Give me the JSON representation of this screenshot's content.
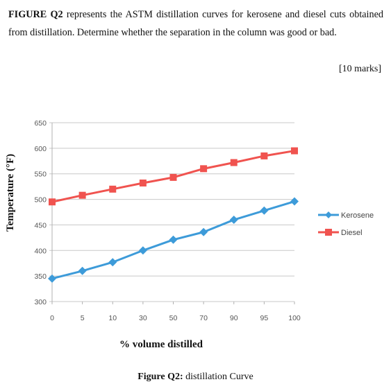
{
  "question": {
    "label": "FIGURE Q2",
    "text": " represents the ASTM distillation curves for kerosene and diesel cuts obtained from distillation. Determine whether the separation in the column was good or bad.",
    "marks": "[10 marks]"
  },
  "caption": {
    "label": "Figure Q2:",
    "text": "  distillation Curve"
  },
  "chart_data": {
    "type": "line",
    "categories": [
      "0",
      "5",
      "10",
      "30",
      "50",
      "70",
      "90",
      "95",
      "100"
    ],
    "ylabel": "Temperature (°F)",
    "xlabel": "% volume distilled",
    "ylim": [
      300,
      650
    ],
    "yticks": [
      300,
      350,
      400,
      450,
      500,
      550,
      600,
      650
    ],
    "grid": "horizontal",
    "legend": "right",
    "series": [
      {
        "name": "Kerosene",
        "color": "#3d9bd9",
        "marker": "diamond",
        "values": [
          345,
          360,
          377,
          400,
          421,
          436,
          460,
          478,
          496
        ]
      },
      {
        "name": "Diesel",
        "color": "#f0534f",
        "marker": "square",
        "values": [
          495,
          508,
          520,
          532,
          543,
          560,
          572,
          585,
          595
        ]
      }
    ]
  }
}
